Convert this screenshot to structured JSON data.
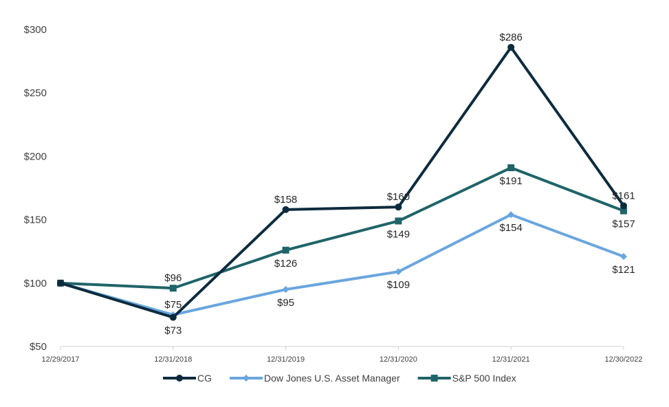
{
  "chart_data": {
    "type": "line",
    "title": "",
    "xlabel": "",
    "ylabel": "",
    "ylim": [
      50,
      300
    ],
    "ytick_step": 50,
    "ytick_labels": [
      "$50",
      "$100",
      "$150",
      "$200",
      "$250",
      "$300"
    ],
    "categories": [
      "12/29/2017",
      "12/31/2018",
      "12/31/2019",
      "12/31/2020",
      "12/31/2021",
      "12/30/2022"
    ],
    "grid": false,
    "legend_position": "bottom",
    "series": [
      {
        "name": "CG",
        "color": "#0d2b3e",
        "marker": "circle",
        "values": [
          100,
          73,
          158,
          160,
          286,
          161
        ],
        "labels": [
          "",
          "$73",
          "$158",
          "$160",
          "$286",
          "$161"
        ],
        "label_side": [
          "",
          "below",
          "above",
          "above",
          "above",
          "above"
        ]
      },
      {
        "name": "Dow Jones U.S. Asset Manager",
        "color": "#6aa6de",
        "marker": "diamond",
        "values": [
          100,
          75,
          95,
          109,
          154,
          121
        ],
        "labels": [
          "",
          "$75",
          "$95",
          "$109",
          "$154",
          "$121"
        ],
        "label_side": [
          "",
          "above",
          "below",
          "below",
          "below",
          "below"
        ]
      },
      {
        "name": "S&P 500 Index",
        "color": "#1f6468",
        "marker": "square",
        "values": [
          100,
          96,
          126,
          149,
          191,
          157
        ],
        "labels": [
          "",
          "$96",
          "$126",
          "$149",
          "$191",
          "$157"
        ],
        "label_side": [
          "",
          "above",
          "below",
          "below",
          "below",
          "below"
        ]
      }
    ]
  }
}
